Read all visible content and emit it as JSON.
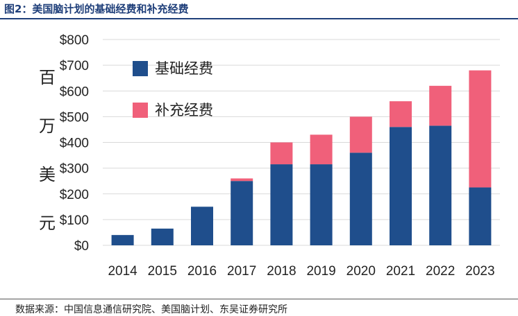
{
  "figure_title": "图2：美国脑计划的基础经费和补充经费",
  "source": "数据来源：中国信息通信研究院、美国脑计划、东吴证券研究所",
  "chart_data": {
    "type": "bar",
    "stacked": true,
    "categories": [
      "2014",
      "2015",
      "2016",
      "2017",
      "2018",
      "2019",
      "2020",
      "2021",
      "2022",
      "2023"
    ],
    "series": [
      {
        "name": "基础经费",
        "color": "#1f4e8c",
        "values": [
          40,
          65,
          150,
          250,
          315,
          315,
          360,
          460,
          465,
          225
        ]
      },
      {
        "name": "补充经费",
        "color": "#f0607a",
        "values": [
          0,
          0,
          0,
          10,
          85,
          115,
          140,
          100,
          155,
          455
        ]
      }
    ],
    "ylabel": "百万美元",
    "yticks": [
      "$0",
      "$100",
      "$200",
      "$300",
      "$400",
      "$500",
      "$600",
      "$700",
      "$800"
    ],
    "ylim": [
      0,
      800
    ],
    "legend": "top-left",
    "grid": true
  }
}
